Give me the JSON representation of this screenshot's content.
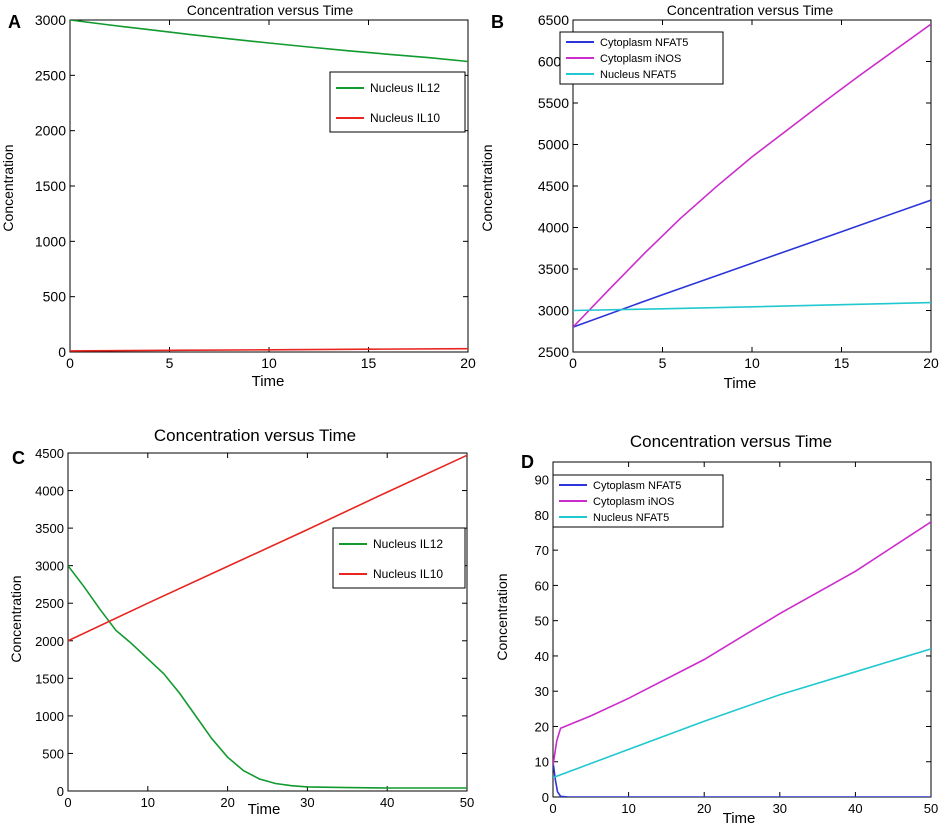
{
  "chart_data": [
    {
      "panel": "A",
      "type": "line",
      "title": "Concentration versus Time",
      "xlabel": "Time",
      "ylabel": "Concentration",
      "xlim": [
        0,
        20
      ],
      "ylim": [
        0,
        3000
      ],
      "xticks": [
        0,
        5,
        10,
        15,
        20
      ],
      "yticks": [
        0,
        500,
        1000,
        1500,
        2000,
        2500,
        3000
      ],
      "legend_position": "upper-right",
      "series": [
        {
          "name": "Nucleus IL12",
          "color": "#119a2e",
          "x": [
            0,
            2,
            4,
            6,
            8,
            10,
            12,
            14,
            16,
            18,
            20
          ],
          "y": [
            3000,
            2955,
            2912,
            2870,
            2830,
            2792,
            2756,
            2722,
            2690,
            2660,
            2625
          ]
        },
        {
          "name": "Nucleus IL10",
          "color": "#e8251f",
          "x": [
            0,
            5,
            10,
            15,
            20
          ],
          "y": [
            10,
            15,
            20,
            25,
            30
          ]
        }
      ]
    },
    {
      "panel": "B",
      "type": "line",
      "title": "Concentration versus Time",
      "xlabel": "Time",
      "ylabel": "Concentration",
      "xlim": [
        0,
        20
      ],
      "ylim": [
        2500,
        6500
      ],
      "xticks": [
        0,
        5,
        10,
        15,
        20
      ],
      "yticks": [
        2500,
        3000,
        3500,
        4000,
        4500,
        5000,
        5500,
        6000,
        6500
      ],
      "legend_position": "upper-left",
      "series": [
        {
          "name": "Cytoplasm NFAT5",
          "color": "#2b35d8",
          "x": [
            0,
            5,
            10,
            15,
            20
          ],
          "y": [
            2800,
            3190,
            3570,
            3950,
            4330
          ]
        },
        {
          "name": "Cytoplasm iNOS",
          "color": "#cc2ccc",
          "x": [
            0,
            2,
            4,
            6,
            8,
            10,
            12,
            14,
            16,
            18,
            20
          ],
          "y": [
            2800,
            3250,
            3690,
            4110,
            4490,
            4850,
            5180,
            5510,
            5830,
            6140,
            6450
          ]
        },
        {
          "name": "Nucleus NFAT5",
          "color": "#22c8d0",
          "x": [
            0,
            5,
            10,
            15,
            20
          ],
          "y": [
            3000,
            3020,
            3045,
            3070,
            3095
          ]
        }
      ]
    },
    {
      "panel": "C",
      "type": "line",
      "title": "Concentration versus Time",
      "xlabel": "Time",
      "ylabel": "Concentration",
      "xlim": [
        0,
        50
      ],
      "ylim": [
        0,
        4500
      ],
      "xticks": [
        0,
        10,
        20,
        30,
        40,
        50
      ],
      "yticks": [
        0,
        500,
        1000,
        1500,
        2000,
        2500,
        3000,
        3500,
        4000,
        4500
      ],
      "legend_position": "center-right",
      "series": [
        {
          "name": "Nucleus IL12",
          "color": "#119a2e",
          "x": [
            0,
            2,
            4,
            6,
            8,
            10,
            12,
            14,
            16,
            18,
            20,
            22,
            24,
            26,
            28,
            30,
            35,
            40,
            45,
            50
          ],
          "y": [
            3000,
            2720,
            2420,
            2140,
            1960,
            1760,
            1560,
            1300,
            1000,
            700,
            450,
            270,
            160,
            100,
            70,
            55,
            45,
            40,
            40,
            40
          ]
        },
        {
          "name": "Nucleus IL10",
          "color": "#e8251f",
          "x": [
            0,
            10,
            20,
            30,
            40,
            50
          ],
          "y": [
            2000,
            2500,
            2990,
            3480,
            3980,
            4470
          ]
        }
      ]
    },
    {
      "panel": "D",
      "type": "line",
      "title": "Concentration versus Time",
      "xlabel": "Time",
      "ylabel": "Concentration",
      "xlim": [
        0,
        50
      ],
      "ylim": [
        0,
        95
      ],
      "xticks": [
        0,
        10,
        20,
        30,
        40,
        50
      ],
      "yticks": [
        0,
        10,
        20,
        30,
        40,
        50,
        60,
        70,
        80,
        90
      ],
      "legend_position": "upper-left",
      "series": [
        {
          "name": "Cytoplasm NFAT5",
          "color": "#2b35d8",
          "x": [
            0,
            0.3,
            0.6,
            1,
            2,
            10,
            20,
            30,
            40,
            50
          ],
          "y": [
            10,
            5,
            1.5,
            0.2,
            0,
            0,
            0,
            0,
            0,
            0
          ]
        },
        {
          "name": "Cytoplasm iNOS",
          "color": "#cc2ccc",
          "x": [
            0,
            0.5,
            1,
            5,
            10,
            20,
            30,
            40,
            50
          ],
          "y": [
            9,
            16,
            19.5,
            23,
            28,
            39,
            52,
            64,
            78
          ]
        },
        {
          "name": "Nucleus NFAT5",
          "color": "#22c8d0",
          "x": [
            0,
            10,
            20,
            30,
            40,
            50
          ],
          "y": [
            5.5,
            13.5,
            21.5,
            29,
            35.5,
            42
          ]
        }
      ]
    }
  ]
}
